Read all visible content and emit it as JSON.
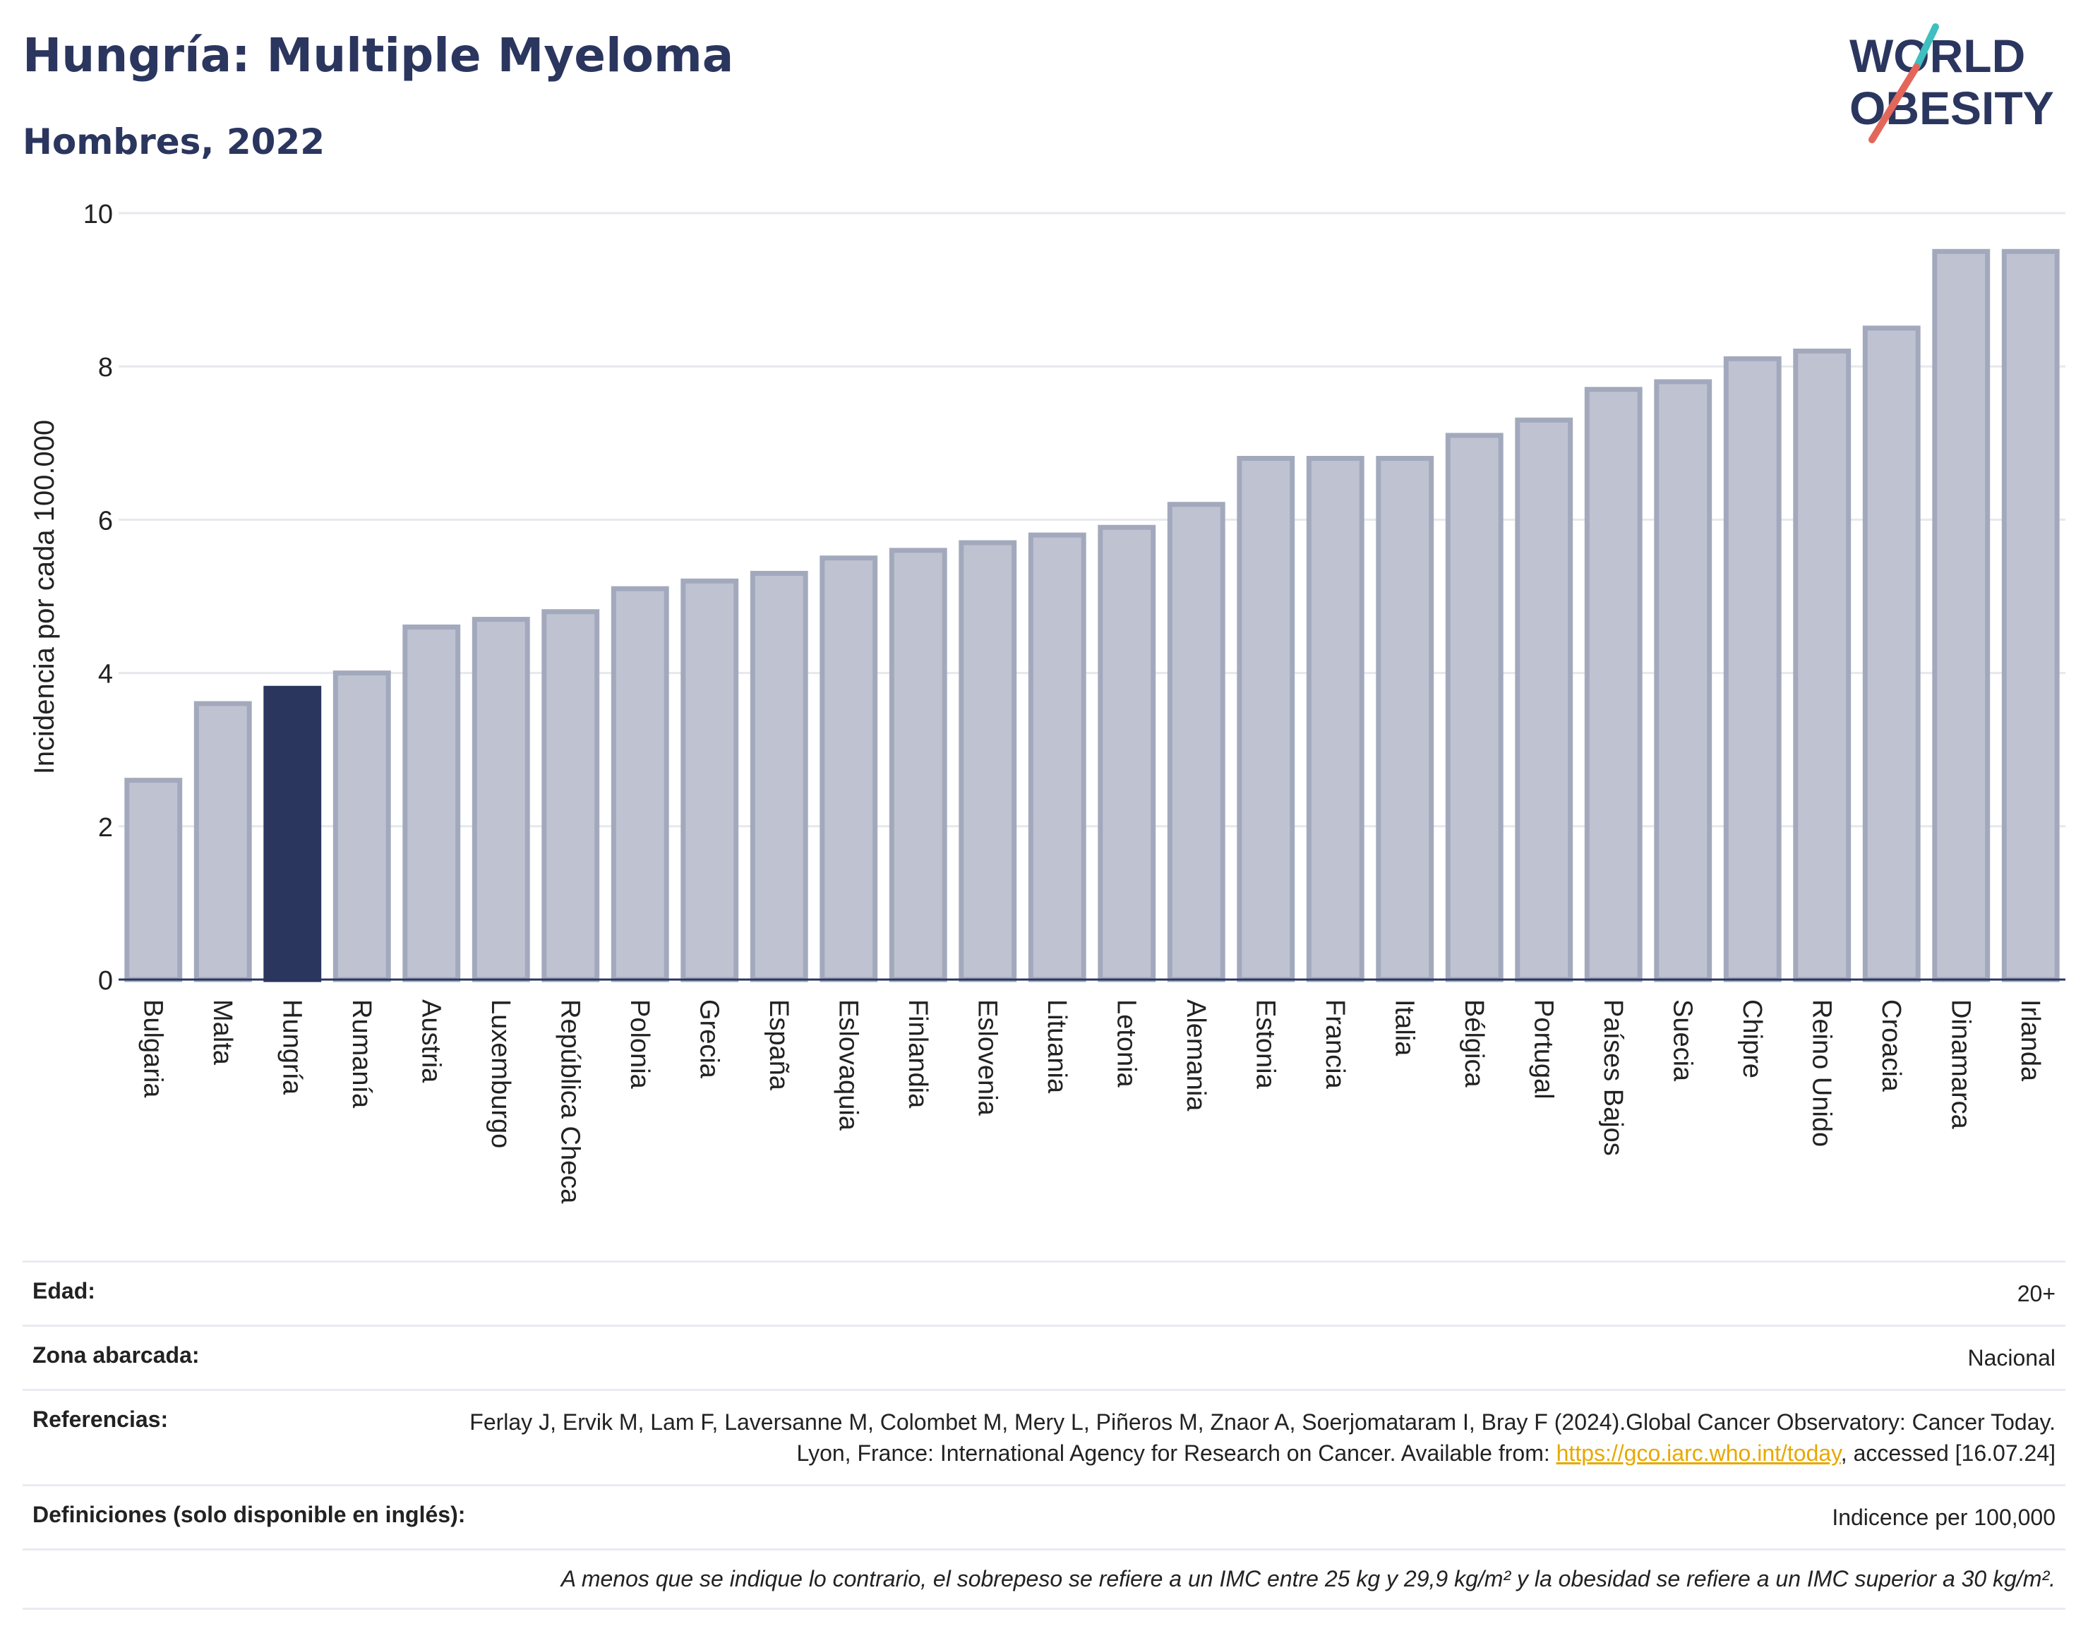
{
  "header": {
    "title": "Hungría: Multiple Myeloma",
    "subtitle": "Hombres, 2022"
  },
  "logo": {
    "line1": "WORLD",
    "line2": "OBESITY",
    "text_color": "#2b365f",
    "slash_colors": [
      "#3fbfbf",
      "#e2675a"
    ]
  },
  "colors": {
    "bar": "#bfc3d1",
    "bar_stroke": "#a3a9bd",
    "highlight": "#2b365f",
    "grid": "#e6e8ee",
    "axis": "#2b365f"
  },
  "chart_data": {
    "type": "bar",
    "title": "Hungría: Multiple Myeloma",
    "subtitle": "Hombres, 2022",
    "ylabel": "Incidencia por cada 100.000",
    "xlabel": "",
    "ylim": [
      0,
      10
    ],
    "yticks": [
      0,
      2,
      4,
      6,
      8,
      10
    ],
    "grid": true,
    "highlight": "Hungría",
    "categories": [
      "Bulgaria",
      "Malta",
      "Hungría",
      "Rumanía",
      "Austria",
      "Luxemburgo",
      "República Checa",
      "Polonia",
      "Grecia",
      "España",
      "Eslovaquia",
      "Finlandia",
      "Eslovenia",
      "Lituania",
      "Letonia",
      "Alemania",
      "Estonia",
      "Francia",
      "Italia",
      "Bélgica",
      "Portugal",
      "Países Bajos",
      "Suecia",
      "Chipre",
      "Reino Unido",
      "Croacia",
      "Dinamarca",
      "Irlanda"
    ],
    "values": [
      2.6,
      3.6,
      3.8,
      4.0,
      4.6,
      4.7,
      4.8,
      5.1,
      5.2,
      5.3,
      5.5,
      5.6,
      5.7,
      5.8,
      5.9,
      6.2,
      6.8,
      6.8,
      6.8,
      7.1,
      7.3,
      7.7,
      7.8,
      8.1,
      8.2,
      8.5,
      9.5,
      9.5
    ]
  },
  "info": {
    "age_label": "Edad:",
    "age_value": "20+",
    "zone_label": "Zona abarcada:",
    "zone_value": "Nacional",
    "refs_label": "Referencias:",
    "refs_text": "Ferlay J, Ervik M, Lam F, Laversanne M, Colombet M, Mery L, Piñeros M, Znaor A, Soerjomataram I, Bray F (2024).Global Cancer Observatory: Cancer Today. Lyon, France: International Agency for Research on Cancer. Available from: ",
    "refs_link": "https://gco.iarc.who.int/today",
    "refs_tail": ", accessed [16.07.24]",
    "defs_label": "Definiciones (solo disponible en inglés):",
    "defs_value": "Indicence per 100,000",
    "note": "A menos que se indique lo contrario, el sobrepeso se refiere a un IMC entre 25 kg y 29,9 kg/m² y la obesidad se refiere a un IMC superior a 30 kg/m²."
  }
}
